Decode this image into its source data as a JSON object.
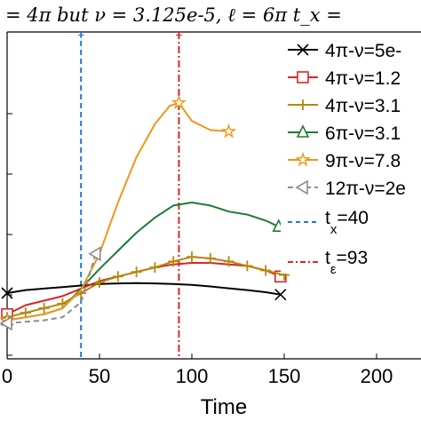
{
  "chart_data": {
    "type": "line",
    "title": "= 4π but ν = 3.125e-5, ℓ = 6π    t_x =",
    "xlabel": "Time",
    "ylabel": "",
    "xlim": [
      0,
      215
    ],
    "x_ticks": [
      0,
      50,
      100,
      150,
      200
    ],
    "x_tick_labels": [
      "0",
      "50",
      "100",
      "150",
      "200"
    ],
    "grid": false,
    "legend_position": "right",
    "series": [
      {
        "name": "4π-ν=5e-",
        "color": "#000000",
        "marker": "x",
        "x": [
          0,
          10,
          20,
          30,
          40,
          50,
          60,
          70,
          80,
          90,
          100,
          110,
          120,
          130,
          140,
          148
        ],
        "y": [
          0.2,
          0.21,
          0.215,
          0.22,
          0.225,
          0.23,
          0.232,
          0.233,
          0.232,
          0.23,
          0.227,
          0.222,
          0.216,
          0.21,
          0.203,
          0.195
        ],
        "marker_x": [
          0,
          148
        ]
      },
      {
        "name": "4π-ν=1.2",
        "color": "#d62728",
        "marker": "square",
        "x": [
          0,
          10,
          20,
          30,
          40,
          50,
          60,
          70,
          80,
          90,
          100,
          110,
          120,
          130,
          140,
          148
        ],
        "y": [
          0.13,
          0.16,
          0.175,
          0.19,
          0.215,
          0.24,
          0.255,
          0.27,
          0.285,
          0.295,
          0.3,
          0.3,
          0.295,
          0.29,
          0.275,
          0.255
        ],
        "marker_x": [
          0,
          148
        ]
      },
      {
        "name": "4π-ν=3.1",
        "color": "#b8860b",
        "marker": "plus",
        "x": [
          0,
          10,
          20,
          30,
          40,
          50,
          60,
          70,
          80,
          90,
          100,
          110,
          120,
          130,
          140,
          150
        ],
        "y": [
          0.12,
          0.135,
          0.15,
          0.165,
          0.2,
          0.235,
          0.255,
          0.27,
          0.285,
          0.305,
          0.32,
          0.315,
          0.305,
          0.29,
          0.275,
          0.26
        ],
        "marker_x": [
          0,
          10,
          20,
          30,
          40,
          50,
          60,
          70,
          80,
          90,
          100,
          110,
          120,
          130,
          140,
          150
        ]
      },
      {
        "name": "6π-ν=3.1",
        "color": "#1e7b34",
        "marker": "triangle-up",
        "x": [
          0,
          10,
          20,
          30,
          40,
          50,
          60,
          70,
          80,
          90,
          100,
          110,
          120,
          130,
          140,
          147
        ],
        "y": [
          0.11,
          0.12,
          0.13,
          0.15,
          0.215,
          0.28,
          0.34,
          0.4,
          0.45,
          0.49,
          0.5,
          0.49,
          0.47,
          0.46,
          0.44,
          0.42
        ],
        "marker_x": [
          0,
          147
        ]
      },
      {
        "name": "9π-ν=7.8",
        "color": "#f0961a",
        "marker": "star",
        "x": [
          0,
          10,
          20,
          30,
          40,
          50,
          60,
          70,
          80,
          88,
          93,
          100,
          110,
          120
        ],
        "y": [
          0.11,
          0.12,
          0.13,
          0.15,
          0.21,
          0.33,
          0.5,
          0.65,
          0.76,
          0.82,
          0.83,
          0.77,
          0.74,
          0.735
        ],
        "marker_x": [
          0,
          93,
          120
        ]
      },
      {
        "name": "12π-ν=2e",
        "color": "#8c8c8c",
        "marker": "triangle-left",
        "dashed": true,
        "x": [
          0,
          10,
          20,
          30,
          40,
          48
        ],
        "y": [
          0.1,
          0.105,
          0.11,
          0.12,
          0.17,
          0.33
        ],
        "marker_x": [
          0,
          48
        ]
      }
    ],
    "vlines": [
      {
        "name": "t_x =40",
        "label_main": "t",
        "label_sub": "x",
        "label_rest": "=40",
        "x": 40,
        "color": "#1f77d4"
      },
      {
        "name": "t_ε =93",
        "label_main": "t",
        "label_sub": "ε",
        "label_rest": "=93",
        "x": 93,
        "color": "#d62728"
      }
    ]
  }
}
